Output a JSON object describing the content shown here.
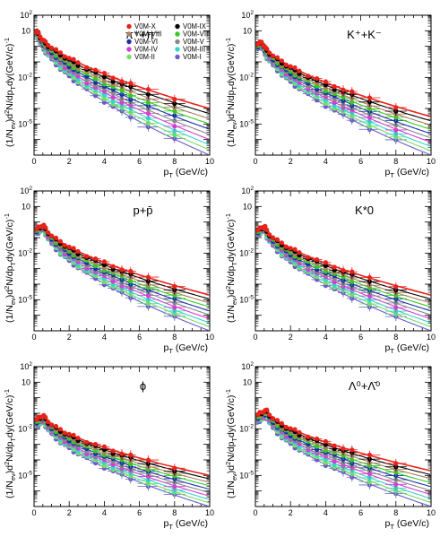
{
  "chart_data": {
    "type": "scatter",
    "shared": {
      "xlabel_main": "p",
      "xlabel_sub": "T",
      "xlabel_unit": "(GeV/c)",
      "ylabel": "(1/N",
      "ylabel_sub1": "ev",
      "ylabel_mid": ")d",
      "ylabel_sup1": "2",
      "ylabel_mid2": "N/dp",
      "ylabel_sub2": "T",
      "ylabel_mid3": "dy(GeV/c)",
      "ylabel_sup2": "-1",
      "xlim": [
        0,
        10
      ],
      "ylim": [
        1e-07,
        100
      ],
      "yscale": "log",
      "x_ticks": [
        "0",
        "2",
        "4",
        "6",
        "8",
        "10"
      ],
      "legend_placement": "top-right (first panel only)",
      "legend": [
        {
          "label": "V0M-X",
          "color": "#e8231c"
        },
        {
          "label": "V0M-IX",
          "color": "#000000"
        },
        {
          "label": "V0M-VIII",
          "color": "#a88060"
        },
        {
          "label": "V0M-VII",
          "color": "#33cc22"
        },
        {
          "label": "V0M-VI",
          "color": "#1a2fa8"
        },
        {
          "label": "V0M-V",
          "color": "#888888"
        },
        {
          "label": "V0M-IV",
          "color": "#d63bd6"
        },
        {
          "label": "V0M-III",
          "color": "#33d6c8"
        },
        {
          "label": "V0M-II",
          "color": "#77dd66"
        },
        {
          "label": "V0M-I",
          "color": "#6a5acd"
        }
      ],
      "x_points": [
        0.15,
        0.25,
        0.35,
        0.45,
        0.55,
        0.65,
        0.8,
        1.0,
        1.25,
        1.5,
        1.75,
        2.0,
        2.25,
        2.5,
        3.0,
        3.5,
        4.0,
        4.5,
        5.0,
        5.5,
        6.5,
        8.0
      ]
    },
    "panels": [
      {
        "title": "π⁺+π⁻",
        "peak_x": 0.2,
        "v1_peak": 10,
        "v10_peak": 6,
        "v1_at10": 0.0001,
        "v10_at10": 1e-07
      },
      {
        "title": "K⁺+K⁻",
        "peak_x": 0.4,
        "v1_peak": 2.0,
        "v10_peak": 1.0,
        "v1_at10": 3e-05,
        "v10_at10": 1e-07
      },
      {
        "title": "p+p̄",
        "peak_x": 0.6,
        "v1_peak": 0.6,
        "v10_peak": 0.3,
        "v1_at10": 2e-05,
        "v10_at10": 1e-07
      },
      {
        "title": "K*0",
        "peak_x": 0.55,
        "v1_peak": 0.5,
        "v10_peak": 0.25,
        "v1_at10": 2e-05,
        "v10_at10": 1e-07
      },
      {
        "title": "ϕ",
        "peak_x": 0.6,
        "v1_peak": 0.07,
        "v10_peak": 0.025,
        "v1_at10": 1e-05,
        "v10_at10": 1e-07
      },
      {
        "title": "Λ⁰+Λ̄⁰",
        "peak_x": 0.7,
        "v1_peak": 0.15,
        "v10_peak": 0.05,
        "v1_at10": 2e-05,
        "v10_at10": 1e-07
      }
    ]
  }
}
